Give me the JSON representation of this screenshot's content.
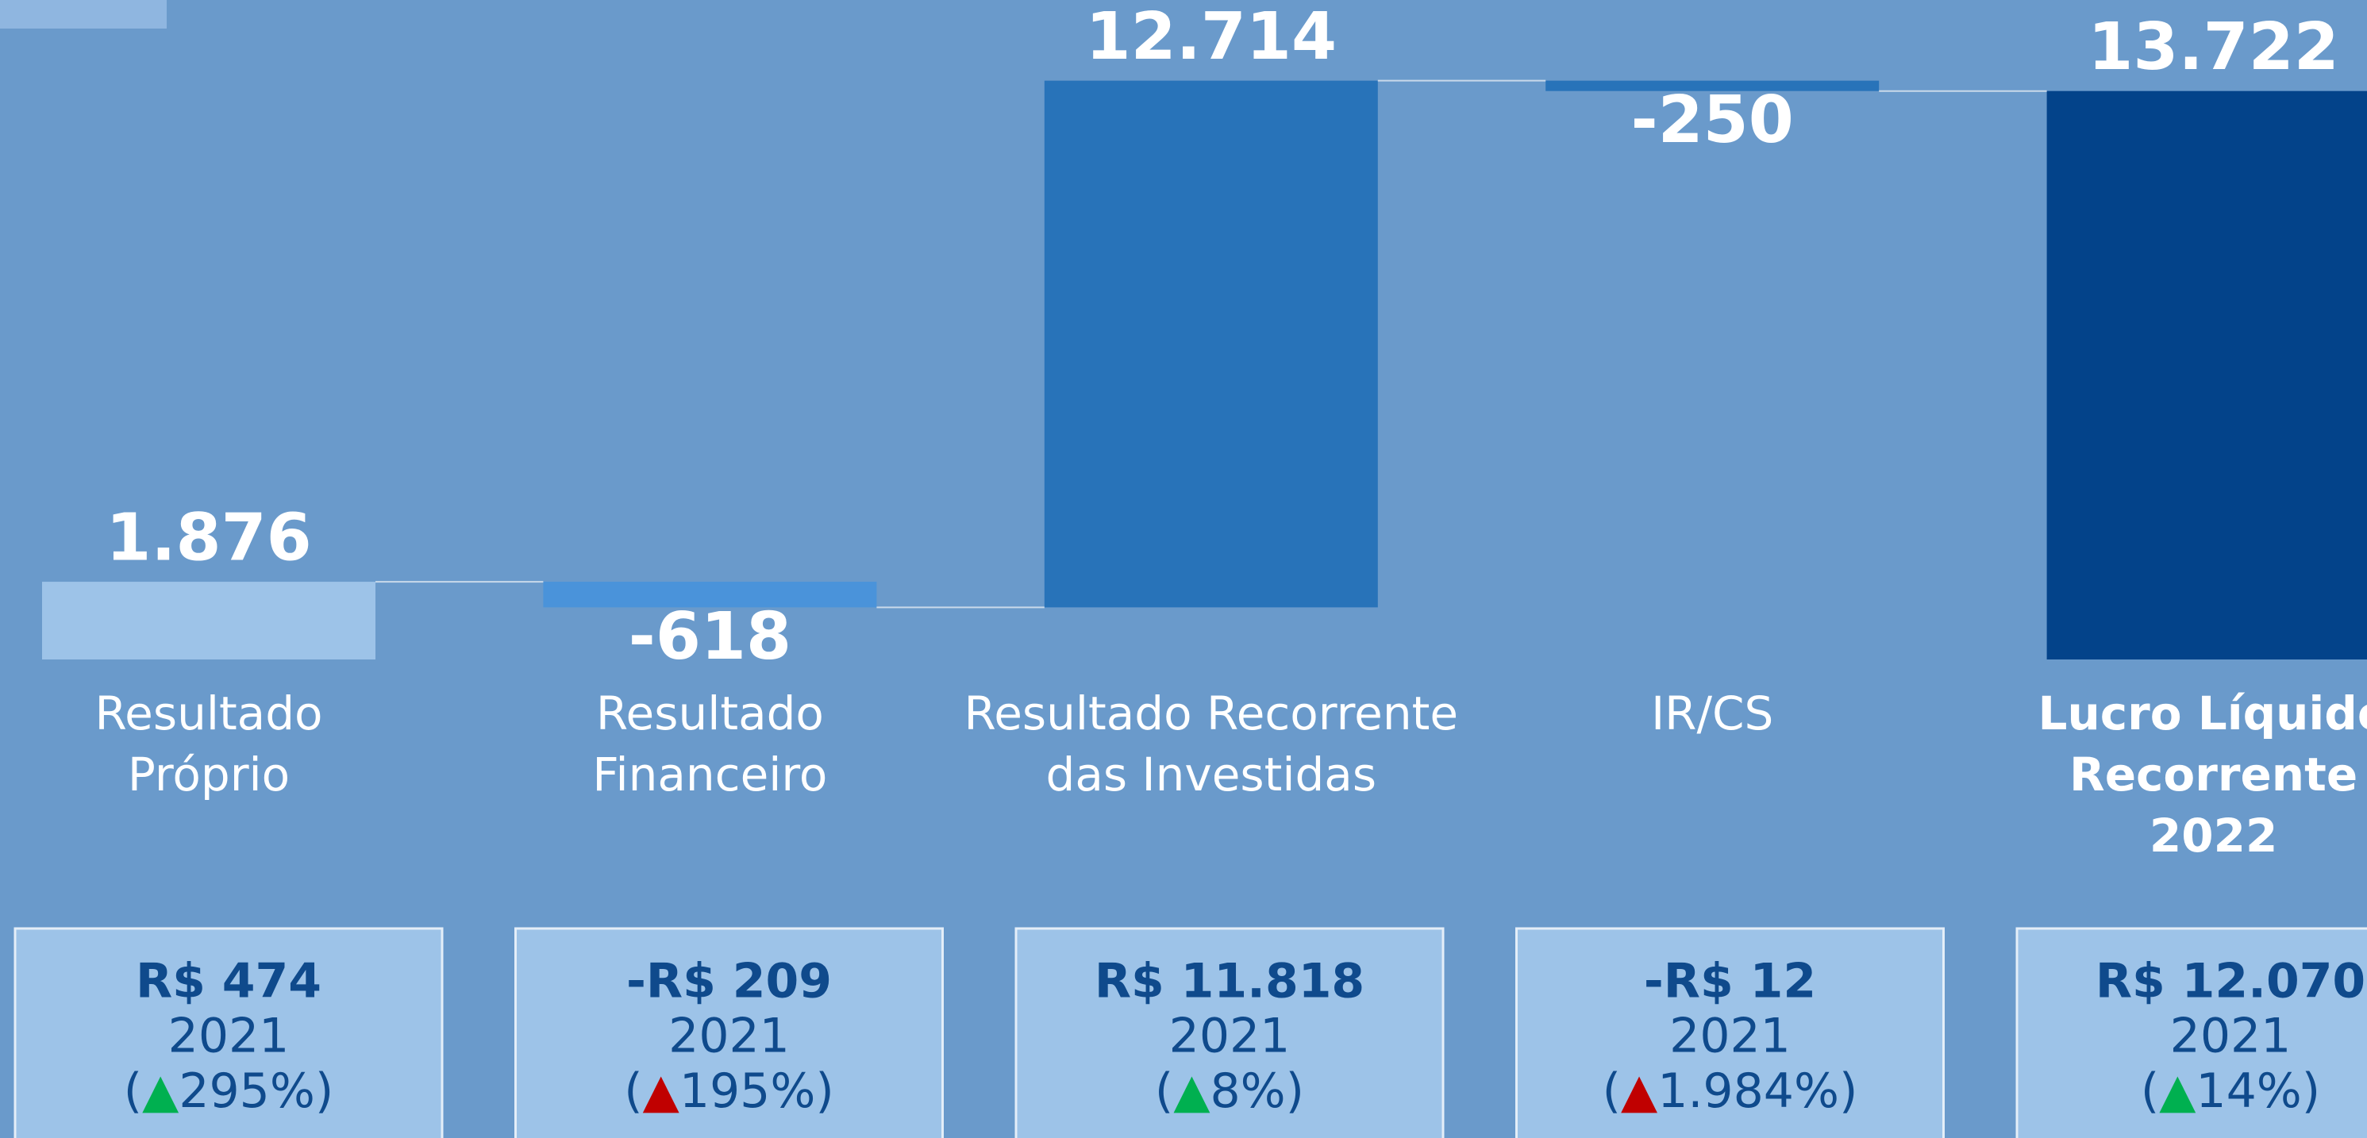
{
  "chart_data": {
    "type": "waterfall",
    "categories": [
      [
        "Resultado",
        "Próprio"
      ],
      [
        "Resultado",
        "Financeiro"
      ],
      [
        "Resultado Recorrente",
        "das Investidas"
      ],
      [
        "IR/CS"
      ],
      [
        "Lucro Líquido",
        "Recorrente",
        "2022"
      ]
    ],
    "values": [
      1876,
      -618,
      12714,
      -250,
      13722
    ],
    "value_labels": [
      "1.876",
      "-618",
      "12.714",
      "-250",
      "13.722"
    ],
    "totals": [
      false,
      false,
      false,
      false,
      true
    ],
    "colors": [
      "#9dc3e8",
      "#4a93da",
      "#2873b9",
      "#2873b9",
      "#03438a"
    ],
    "comparison": [
      {
        "amount": "R$ 474",
        "year": "2021",
        "change": [
          "(",
          "▲",
          "295%)"
        ],
        "arrow_color": "#00b050"
      },
      {
        "amount": "-R$ 209",
        "year": "2021",
        "change": [
          "(",
          "▲",
          "195%)"
        ],
        "arrow_color": "#c00000"
      },
      {
        "amount": "R$ 11.818",
        "year": "2021",
        "change": [
          "(",
          "▲",
          "8%)"
        ],
        "arrow_color": "#00b050"
      },
      {
        "amount": "-R$ 12",
        "year": "2021",
        "change": [
          "(",
          "▲",
          "1.984%)"
        ],
        "arrow_color": "#c00000"
      },
      {
        "amount": "R$ 12.070",
        "year": "2021",
        "change": [
          "(",
          "▲",
          "14%)"
        ],
        "arrow_color": "#00b050"
      }
    ]
  }
}
